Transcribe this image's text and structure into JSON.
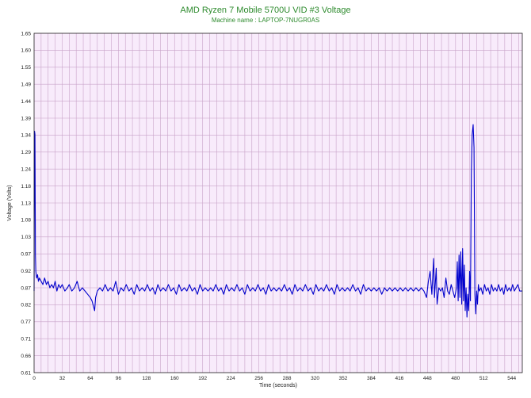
{
  "title": "AMD Ryzen 7 Mobile 5700U VID #3 Voltage",
  "subtitle": "Machine name : LAPTOP-7NUGR0AS",
  "chart_data": {
    "type": "line",
    "title": "AMD Ryzen 7 Mobile 5700U VID #3 Voltage",
    "subtitle": "Machine name : LAPTOP-7NUGR0AS",
    "xlabel": "Time (seconds)",
    "ylabel": "Voltage (Volts)",
    "xlim": [
      0,
      556
    ],
    "ylim": [
      0.61,
      1.65
    ],
    "x_ticks": [
      "0",
      "32",
      "64",
      "96",
      "128",
      "160",
      "192",
      "224",
      "256",
      "288",
      "320",
      "352",
      "384",
      "416",
      "448",
      "480",
      "512",
      "544"
    ],
    "y_ticks": [
      "0.61",
      "0.66",
      "0.71",
      "0.77",
      "0.82",
      "0.87",
      "0.92",
      "0.97",
      "1.03",
      "1.08",
      "1.13",
      "1.18",
      "1.24",
      "1.29",
      "1.34",
      "1.39",
      "1.44",
      "1.49",
      "1.55",
      "1.60",
      "1.65"
    ],
    "grid": true,
    "plot_background": "#f8ebfb",
    "grid_color": "#c9a3c9",
    "line_color": "#0000cc",
    "series": [
      {
        "points": [
          [
            0,
            0.86
          ],
          [
            0.5,
            1.35
          ],
          [
            1,
            1.34
          ],
          [
            1.5,
            0.97
          ],
          [
            2,
            0.92
          ],
          [
            3,
            0.9
          ],
          [
            4,
            0.91
          ],
          [
            5,
            0.89
          ],
          [
            6,
            0.9
          ],
          [
            8,
            0.89
          ],
          [
            10,
            0.88
          ],
          [
            12,
            0.9
          ],
          [
            14,
            0.88
          ],
          [
            16,
            0.89
          ],
          [
            18,
            0.87
          ],
          [
            20,
            0.88
          ],
          [
            22,
            0.87
          ],
          [
            24,
            0.89
          ],
          [
            26,
            0.86
          ],
          [
            28,
            0.88
          ],
          [
            30,
            0.87
          ],
          [
            32,
            0.88
          ],
          [
            35,
            0.86
          ],
          [
            38,
            0.87
          ],
          [
            40,
            0.88
          ],
          [
            43,
            0.86
          ],
          [
            46,
            0.87
          ],
          [
            49,
            0.89
          ],
          [
            52,
            0.86
          ],
          [
            55,
            0.87
          ],
          [
            58,
            0.86
          ],
          [
            61,
            0.85
          ],
          [
            64,
            0.84
          ],
          [
            66,
            0.83
          ],
          [
            68,
            0.81
          ],
          [
            69,
            0.8
          ],
          [
            70,
            0.84
          ],
          [
            72,
            0.86
          ],
          [
            75,
            0.87
          ],
          [
            78,
            0.86
          ],
          [
            81,
            0.88
          ],
          [
            84,
            0.86
          ],
          [
            87,
            0.87
          ],
          [
            90,
            0.86
          ],
          [
            93,
            0.89
          ],
          [
            96,
            0.85
          ],
          [
            99,
            0.87
          ],
          [
            102,
            0.86
          ],
          [
            105,
            0.88
          ],
          [
            108,
            0.86
          ],
          [
            111,
            0.87
          ],
          [
            114,
            0.85
          ],
          [
            117,
            0.88
          ],
          [
            120,
            0.86
          ],
          [
            123,
            0.87
          ],
          [
            126,
            0.86
          ],
          [
            129,
            0.88
          ],
          [
            132,
            0.86
          ],
          [
            135,
            0.87
          ],
          [
            138,
            0.85
          ],
          [
            141,
            0.88
          ],
          [
            144,
            0.86
          ],
          [
            147,
            0.87
          ],
          [
            150,
            0.86
          ],
          [
            153,
            0.88
          ],
          [
            156,
            0.86
          ],
          [
            159,
            0.87
          ],
          [
            162,
            0.85
          ],
          [
            165,
            0.88
          ],
          [
            168,
            0.86
          ],
          [
            171,
            0.87
          ],
          [
            174,
            0.86
          ],
          [
            177,
            0.88
          ],
          [
            180,
            0.86
          ],
          [
            183,
            0.87
          ],
          [
            186,
            0.85
          ],
          [
            189,
            0.88
          ],
          [
            192,
            0.86
          ],
          [
            195,
            0.87
          ],
          [
            198,
            0.86
          ],
          [
            201,
            0.87
          ],
          [
            204,
            0.86
          ],
          [
            207,
            0.88
          ],
          [
            210,
            0.86
          ],
          [
            213,
            0.87
          ],
          [
            216,
            0.85
          ],
          [
            219,
            0.88
          ],
          [
            222,
            0.86
          ],
          [
            225,
            0.87
          ],
          [
            228,
            0.86
          ],
          [
            231,
            0.88
          ],
          [
            234,
            0.86
          ],
          [
            237,
            0.87
          ],
          [
            240,
            0.85
          ],
          [
            243,
            0.88
          ],
          [
            246,
            0.86
          ],
          [
            249,
            0.87
          ],
          [
            252,
            0.86
          ],
          [
            255,
            0.88
          ],
          [
            258,
            0.86
          ],
          [
            261,
            0.87
          ],
          [
            264,
            0.85
          ],
          [
            267,
            0.88
          ],
          [
            270,
            0.86
          ],
          [
            273,
            0.87
          ],
          [
            276,
            0.86
          ],
          [
            279,
            0.87
          ],
          [
            282,
            0.86
          ],
          [
            285,
            0.88
          ],
          [
            288,
            0.86
          ],
          [
            291,
            0.87
          ],
          [
            294,
            0.85
          ],
          [
            297,
            0.88
          ],
          [
            300,
            0.86
          ],
          [
            303,
            0.87
          ],
          [
            306,
            0.86
          ],
          [
            309,
            0.88
          ],
          [
            312,
            0.86
          ],
          [
            315,
            0.87
          ],
          [
            318,
            0.85
          ],
          [
            321,
            0.88
          ],
          [
            324,
            0.86
          ],
          [
            327,
            0.87
          ],
          [
            330,
            0.86
          ],
          [
            333,
            0.88
          ],
          [
            336,
            0.86
          ],
          [
            339,
            0.87
          ],
          [
            342,
            0.85
          ],
          [
            345,
            0.88
          ],
          [
            348,
            0.86
          ],
          [
            351,
            0.87
          ],
          [
            354,
            0.86
          ],
          [
            357,
            0.87
          ],
          [
            360,
            0.86
          ],
          [
            363,
            0.88
          ],
          [
            366,
            0.86
          ],
          [
            369,
            0.87
          ],
          [
            372,
            0.85
          ],
          [
            375,
            0.88
          ],
          [
            378,
            0.86
          ],
          [
            381,
            0.87
          ],
          [
            384,
            0.86
          ],
          [
            387,
            0.87
          ],
          [
            390,
            0.86
          ],
          [
            393,
            0.87
          ],
          [
            396,
            0.85
          ],
          [
            399,
            0.87
          ],
          [
            402,
            0.86
          ],
          [
            405,
            0.87
          ],
          [
            408,
            0.86
          ],
          [
            411,
            0.87
          ],
          [
            414,
            0.86
          ],
          [
            417,
            0.87
          ],
          [
            420,
            0.86
          ],
          [
            423,
            0.87
          ],
          [
            426,
            0.86
          ],
          [
            429,
            0.87
          ],
          [
            432,
            0.86
          ],
          [
            435,
            0.87
          ],
          [
            438,
            0.86
          ],
          [
            441,
            0.87
          ],
          [
            444,
            0.86
          ],
          [
            447,
            0.84
          ],
          [
            449,
            0.89
          ],
          [
            451,
            0.92
          ],
          [
            453,
            0.85
          ],
          [
            455,
            0.96
          ],
          [
            456,
            0.84
          ],
          [
            458,
            0.93
          ],
          [
            459,
            0.82
          ],
          [
            461,
            0.87
          ],
          [
            463,
            0.86
          ],
          [
            465,
            0.87
          ],
          [
            467,
            0.84
          ],
          [
            469,
            0.9
          ],
          [
            471,
            0.86
          ],
          [
            473,
            0.85
          ],
          [
            475,
            0.88
          ],
          [
            477,
            0.86
          ],
          [
            479,
            0.84
          ],
          [
            481,
            0.87
          ],
          [
            482,
            0.95
          ],
          [
            483,
            0.83
          ],
          [
            484,
            0.97
          ],
          [
            485,
            0.84
          ],
          [
            486,
            0.98
          ],
          [
            487,
            0.82
          ],
          [
            488,
            0.99
          ],
          [
            489,
            0.83
          ],
          [
            490,
            0.94
          ],
          [
            491,
            0.8
          ],
          [
            492,
            0.87
          ],
          [
            493,
            0.78
          ],
          [
            494,
            0.85
          ],
          [
            495,
            0.8
          ],
          [
            496,
            0.92
          ],
          [
            497,
            0.83
          ],
          [
            498,
            1.22
          ],
          [
            499,
            1.34
          ],
          [
            500,
            1.37
          ],
          [
            501,
            1.3
          ],
          [
            502,
            0.85
          ],
          [
            503,
            0.79
          ],
          [
            504,
            0.86
          ],
          [
            505,
            0.82
          ],
          [
            506,
            0.88
          ],
          [
            507,
            0.86
          ],
          [
            509,
            0.87
          ],
          [
            511,
            0.85
          ],
          [
            513,
            0.88
          ],
          [
            515,
            0.86
          ],
          [
            517,
            0.87
          ],
          [
            519,
            0.85
          ],
          [
            521,
            0.88
          ],
          [
            523,
            0.86
          ],
          [
            525,
            0.87
          ],
          [
            527,
            0.86
          ],
          [
            529,
            0.88
          ],
          [
            531,
            0.86
          ],
          [
            533,
            0.87
          ],
          [
            535,
            0.85
          ],
          [
            537,
            0.88
          ],
          [
            539,
            0.86
          ],
          [
            541,
            0.87
          ],
          [
            543,
            0.86
          ],
          [
            545,
            0.88
          ],
          [
            547,
            0.86
          ],
          [
            549,
            0.87
          ],
          [
            551,
            0.88
          ],
          [
            553,
            0.86
          ],
          [
            556,
            0.86
          ]
        ]
      }
    ]
  }
}
